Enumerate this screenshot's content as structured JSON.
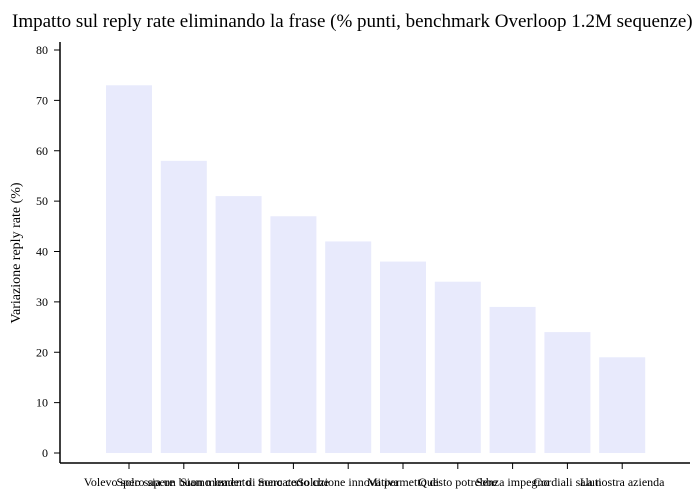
{
  "chart_data": {
    "type": "bar",
    "title": "Impatto sul reply rate eliminando la frase (% punti, benchmark Overloop 1.2M sequenze)",
    "xlabel": "",
    "ylabel": "Variazione reply rate (%)",
    "ylim": [
      0,
      80
    ],
    "yticks": [
      0,
      10,
      20,
      30,
      40,
      50,
      60,
      70,
      80
    ],
    "grid": false,
    "bar_color": "#e8eafc",
    "categories": [
      "Volevo solo sapere",
      "Spero sia un buon momento",
      "Siamo leader di mercato",
      "Sono certo che",
      "Soluzione innovativa",
      "Mi permetto di",
      "Questo potrebbe",
      "Senza impegno",
      "Cordiali saluti",
      "La nostra azienda"
    ],
    "values": [
      73,
      58,
      51,
      47,
      42,
      38,
      34,
      29,
      24,
      19
    ]
  }
}
